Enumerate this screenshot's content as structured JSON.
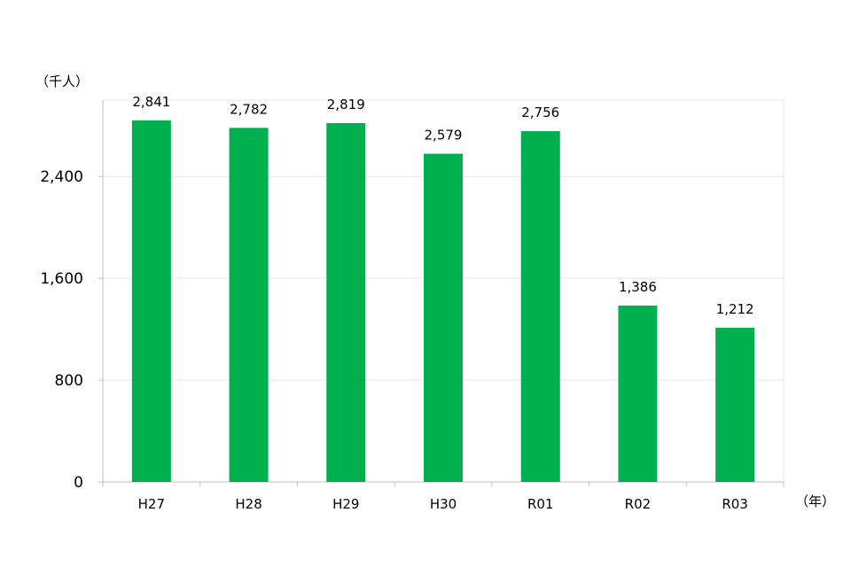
{
  "chart_data": {
    "type": "bar",
    "categories": [
      "H27",
      "H28",
      "H29",
      "H30",
      "R01",
      "R02",
      "R03"
    ],
    "values": [
      2841,
      2782,
      2819,
      2579,
      2756,
      1386,
      1212
    ],
    "data_labels": [
      "2,841",
      "2,782",
      "2,819",
      "2,579",
      "2,756",
      "1,386",
      "1,212"
    ],
    "y_ticks": [
      0,
      800,
      1600,
      2400
    ],
    "y_tick_labels": [
      "0",
      "800",
      "1,600",
      "2,400"
    ],
    "ylim": [
      0,
      3000
    ],
    "y_unit_label": "（千人）",
    "x_unit_label": "（年）",
    "grid": true,
    "bar_color": "#00b04f",
    "grid_color": "#e6e6e6",
    "axis_color": "#bfbfbf"
  }
}
